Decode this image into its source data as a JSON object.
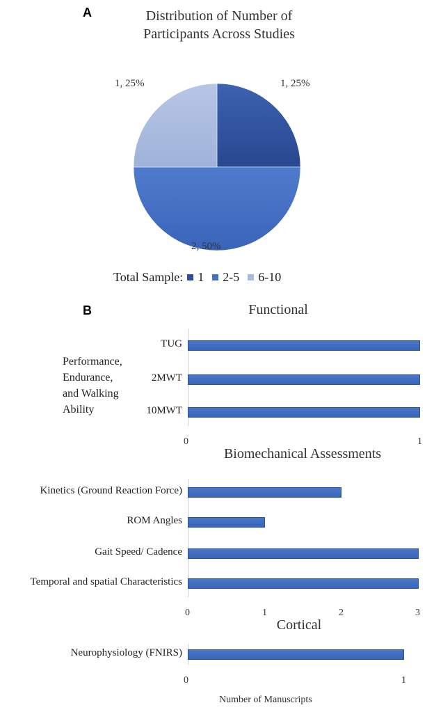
{
  "panel_a": {
    "letter": "A",
    "title_line1": "Distribution of Number of",
    "title_line2": "Participants Across Studies",
    "legend_title": "Total Sample:",
    "legend": [
      {
        "label": "1",
        "color": "#2e4f9c"
      },
      {
        "label": "2-5",
        "color": "#4472c4"
      },
      {
        "label": "6-10",
        "color": "#a9bbe0"
      }
    ]
  },
  "panel_b": {
    "letter": "B",
    "functional": {
      "title": "Functional",
      "group_label_lines": [
        "Performance,",
        "Endurance,",
        "and Walking",
        "Ability"
      ],
      "x_ticks": [
        "0",
        "1"
      ]
    },
    "biomech": {
      "title": "Biomechanical Assessments",
      "x_ticks": [
        "0",
        "1",
        "2",
        "3"
      ]
    },
    "cortical": {
      "title": "Cortical",
      "x_ticks": [
        "0",
        "1"
      ],
      "xlabel": "Number of Manuscripts"
    }
  },
  "chart_data": [
    {
      "type": "pie",
      "title": "Distribution of Number of Participants Across Studies",
      "slices": [
        {
          "category": "1",
          "value": 1,
          "percent": 25,
          "label": "1, 25%",
          "color": "#2e4f9c"
        },
        {
          "category": "2-5",
          "value": 2,
          "percent": 50,
          "label": "2, 50%",
          "color": "#4472c4"
        },
        {
          "category": "6-10",
          "value": 1,
          "percent": 25,
          "label": "1, 25%",
          "color": "#a9bbe0"
        }
      ],
      "legend_title": "Total Sample:",
      "legend_position": "bottom"
    },
    {
      "type": "bar",
      "orientation": "horizontal",
      "title": "Functional",
      "categories": [
        "TUG",
        "2MWT",
        "10MWT"
      ],
      "values": [
        1,
        1,
        1
      ],
      "xlim": [
        0,
        1
      ],
      "color": "#4472c4"
    },
    {
      "type": "bar",
      "orientation": "horizontal",
      "title": "Biomechanical Assessments",
      "categories": [
        "Kinetics (Ground Reaction Force)",
        "ROM Angles",
        "Gait Speed/ Cadence",
        "Temporal and spatial Characteristics"
      ],
      "values": [
        2,
        1,
        3,
        3
      ],
      "xlim": [
        0,
        3
      ],
      "color": "#4472c4"
    },
    {
      "type": "bar",
      "orientation": "horizontal",
      "title": "Cortical",
      "categories": [
        "Neurophysiology (FNIRS)"
      ],
      "values": [
        1
      ],
      "xlim": [
        0,
        1
      ],
      "xlabel": "Number of Manuscripts",
      "color": "#4472c4"
    }
  ]
}
